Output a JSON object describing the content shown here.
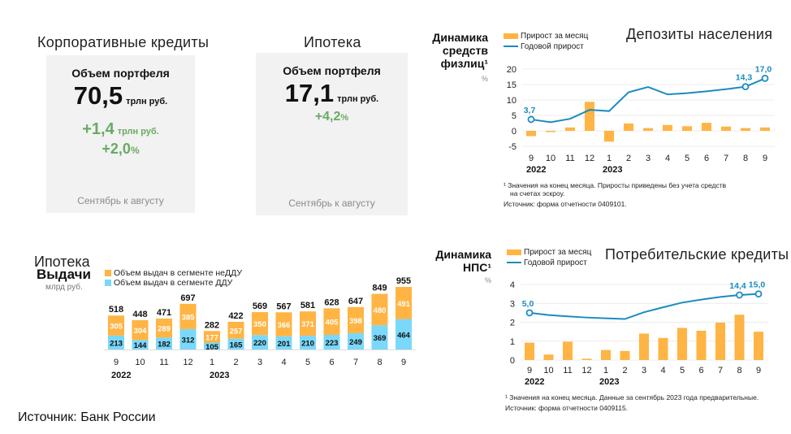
{
  "colors": {
    "bar": "#ffb443",
    "line": "#1a8cbf",
    "ddu": "#7ad8fa",
    "green": "#6aaa64",
    "grid": "#ececec",
    "card": "#f2f2f2"
  },
  "corporate": {
    "title": "Корпоративные кредиты",
    "label": "Объем портфеля",
    "value": "70,5",
    "unit": "трлн руб.",
    "delta_value": "+1,4",
    "delta_unit": "трлн руб.",
    "delta_pct": "+2,0",
    "pct_sign": "%",
    "footer": "Сентябрь к августу"
  },
  "mortgage": {
    "title": "Ипотека",
    "label": "Объем портфеля",
    "value": "17,1",
    "unit": "трлн руб.",
    "delta_pct": "+4,2",
    "pct_sign": "%",
    "footer": "Сентябрь к августу"
  },
  "source": "Источник: Банк России",
  "chart_data": [
    {
      "type": "bar+line",
      "section_title": "Депозиты населения",
      "title_lines": [
        "Динамика",
        "средств",
        "физлиц¹"
      ],
      "ylabel": "%",
      "legend": [
        "Прирост за месяц",
        "Годовой прирост"
      ],
      "categories": [
        "9",
        "10",
        "11",
        "12",
        "1",
        "2",
        "3",
        "4",
        "5",
        "6",
        "7",
        "8",
        "9"
      ],
      "years": [
        "2022",
        "2023"
      ],
      "yticks": [
        "20",
        "15",
        "10",
        "5",
        "0",
        "-5"
      ],
      "ylim": [
        -5,
        20
      ],
      "series": [
        {
          "name": "Прирост за месяц",
          "type": "bar",
          "values": [
            -1.7,
            -0.4,
            1.1,
            9.4,
            -3.5,
            2.4,
            0.9,
            1.9,
            1.5,
            2.6,
            1.4,
            0.9,
            1.1
          ]
        },
        {
          "name": "Годовой прирост",
          "type": "line",
          "values": [
            3.7,
            2.8,
            3.9,
            6.8,
            6.4,
            12.5,
            14.2,
            11.8,
            12.2,
            12.8,
            13.5,
            14.3,
            17.0
          ],
          "labels": {
            "0": "3,7",
            "11": "14,3",
            "12": "17,0"
          }
        }
      ],
      "notes": [
        "¹ Значения на конец месяца. Приросты приведены без учета средств",
        "на счетах эскроу.",
        "Источник: форма отчетности 0409101."
      ]
    },
    {
      "type": "stacked-bar",
      "section_title": "Ипотека",
      "title": "Выдачи",
      "ylabel": "млрд руб.",
      "legend": [
        "Объем выдач в сегменте неДДУ",
        "Объем выдач в сегменте ДДУ"
      ],
      "categories": [
        "9",
        "10",
        "11",
        "12",
        "1",
        "2",
        "3",
        "4",
        "5",
        "6",
        "7",
        "8",
        "9"
      ],
      "years": [
        "2022",
        "2023"
      ],
      "series": [
        {
          "name": "Объем выдач в сегменте ДДУ",
          "values": [
            213,
            144,
            182,
            312,
            105,
            165,
            220,
            201,
            210,
            223,
            249,
            369,
            464
          ]
        },
        {
          "name": "Объем выдач в сегменте неДДУ",
          "values": [
            305,
            304,
            289,
            385,
            177,
            257,
            350,
            366,
            371,
            405,
            398,
            480,
            491
          ]
        }
      ],
      "totals": [
        518,
        448,
        471,
        697,
        282,
        422,
        569,
        567,
        581,
        628,
        647,
        849,
        955
      ]
    },
    {
      "type": "bar+line",
      "section_title": "Потребительские кредиты",
      "title_lines": [
        "Динамика",
        "НПС¹"
      ],
      "ylabel": "%",
      "legend": [
        "Прирост за месяц",
        "Годовой прирост"
      ],
      "categories": [
        "9",
        "10",
        "11",
        "12",
        "1",
        "2",
        "3",
        "4",
        "5",
        "6",
        "7",
        "8",
        "9"
      ],
      "years": [
        "2022",
        "2023"
      ],
      "yticks": [
        "4",
        "3",
        "2",
        "1",
        "0"
      ],
      "ylim": [
        0,
        4
      ],
      "y2lim": [
        -20,
        20
      ],
      "series": [
        {
          "name": "Прирост за месяц",
          "type": "bar",
          "values": [
            0.92,
            0.29,
            0.97,
            0.07,
            0.53,
            0.48,
            1.4,
            1.17,
            1.7,
            1.55,
            1.98,
            2.4,
            1.5
          ]
        },
        {
          "name": "Годовой прирост",
          "type": "line",
          "axis": "secondary",
          "values": [
            5.0,
            3.8,
            3.1,
            2.5,
            2.1,
            1.7,
            5.3,
            7.9,
            10.4,
            12.0,
            13.4,
            14.4,
            15.0
          ],
          "labels": {
            "0": "5,0",
            "11": "14,4",
            "12": "15,0"
          }
        }
      ],
      "notes": [
        "¹ Значения на конец месяца. Данные за сентябрь 2023 года предварительные.",
        "Источник: форма отчетности 0409115."
      ]
    }
  ]
}
